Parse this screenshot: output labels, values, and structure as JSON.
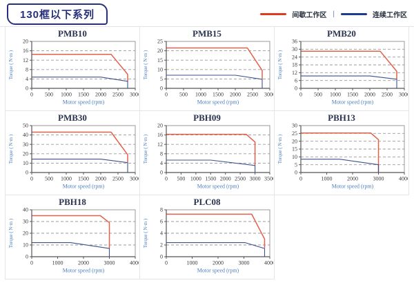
{
  "header": {
    "title": "130框以下系列"
  },
  "legend": {
    "intermittent": "间歇工作区",
    "continuous": "连续工作区",
    "separator": "|",
    "intermittent_color": "#e03a1e",
    "continuous_color": "#1e3a8c"
  },
  "colors": {
    "curve_red": "#e2604a",
    "curve_blue": "#3c508e",
    "grid_dash": "#9a9a9a",
    "plot_border": "#8f8f8f",
    "axis_line": "#555555",
    "tick_text": "#3c3c3c",
    "axis_label_blue": "#4a7ec0",
    "chart_title": "#2a3350",
    "cell_border": "#e4e4e8"
  },
  "axis_labels": {
    "x": "Motor speed (rpm)",
    "y": "Torque ( N·m )"
  },
  "chart_data": [
    {
      "type": "line",
      "title": "PMB10",
      "xlabel": "Motor speed (rpm)",
      "ylabel": "Torque ( N·m )",
      "xlim": [
        0,
        3000
      ],
      "ylim": [
        0,
        20
      ],
      "xticks": [
        0,
        500,
        1000,
        1500,
        2000,
        2500,
        3000
      ],
      "yticks": [
        0,
        4,
        8,
        12,
        16,
        20
      ],
      "series": [
        {
          "name": "间歇工作区",
          "color_key": "curve_red",
          "points": [
            [
              0,
              14.5
            ],
            [
              2300,
              14.5
            ],
            [
              2780,
              6
            ],
            [
              2780,
              3
            ]
          ]
        },
        {
          "name": "连续工作区",
          "color_key": "curve_blue",
          "points": [
            [
              0,
              4.8
            ],
            [
              2000,
              4.8
            ],
            [
              2780,
              3
            ],
            [
              2780,
              0
            ]
          ]
        }
      ]
    },
    {
      "type": "line",
      "title": "PMB15",
      "xlabel": "Motor speed (rpm)",
      "ylabel": "Torque ( N·m )",
      "xlim": [
        0,
        3000
      ],
      "ylim": [
        0,
        25
      ],
      "xticks": [
        0,
        500,
        1000,
        1500,
        2000,
        2500,
        3000
      ],
      "yticks": [
        0,
        5,
        10,
        15,
        20,
        25
      ],
      "series": [
        {
          "name": "间歇工作区",
          "color_key": "curve_red",
          "points": [
            [
              0,
              21.5
            ],
            [
              2350,
              21.5
            ],
            [
              2780,
              9.5
            ],
            [
              2780,
              5
            ]
          ]
        },
        {
          "name": "连续工作区",
          "color_key": "curve_blue",
          "points": [
            [
              0,
              7
            ],
            [
              2000,
              7
            ],
            [
              2780,
              4.8
            ],
            [
              2780,
              0
            ]
          ]
        }
      ]
    },
    {
      "type": "line",
      "title": "PMB20",
      "xlabel": "Motor speed (rpm)",
      "ylabel": "Torque ( N·m )",
      "xlim": [
        0,
        3000
      ],
      "ylim": [
        0,
        36
      ],
      "xticks": [
        0,
        500,
        1000,
        1500,
        2000,
        2500,
        3000
      ],
      "yticks": [
        0,
        6,
        12,
        18,
        24,
        30,
        36
      ],
      "series": [
        {
          "name": "间歇工作区",
          "color_key": "curve_red",
          "points": [
            [
              0,
              28.5
            ],
            [
              2300,
              28.5
            ],
            [
              2780,
              13
            ],
            [
              2780,
              7
            ]
          ]
        },
        {
          "name": "连续工作区",
          "color_key": "curve_blue",
          "points": [
            [
              0,
              9.5
            ],
            [
              2000,
              9.5
            ],
            [
              2780,
              7
            ],
            [
              2780,
              0
            ]
          ]
        }
      ]
    },
    {
      "type": "line",
      "title": "PMB30",
      "xlabel": "Motor speed (rpm)",
      "ylabel": "Torque ( N·m )",
      "xlim": [
        0,
        3000
      ],
      "ylim": [
        0,
        50
      ],
      "xticks": [
        0,
        500,
        1000,
        1500,
        2000,
        2500,
        3000
      ],
      "yticks": [
        0,
        10,
        20,
        30,
        40,
        50
      ],
      "series": [
        {
          "name": "间歇工作区",
          "color_key": "curve_red",
          "points": [
            [
              0,
              43
            ],
            [
              2300,
              43
            ],
            [
              2780,
              19
            ],
            [
              2780,
              11
            ]
          ]
        },
        {
          "name": "连续工作区",
          "color_key": "curve_blue",
          "points": [
            [
              0,
              14.3
            ],
            [
              2000,
              14.3
            ],
            [
              2780,
              10.5
            ],
            [
              2780,
              0
            ]
          ]
        }
      ]
    },
    {
      "type": "line",
      "title": "PBH09",
      "xlabel": "Motor speed (rpm)",
      "ylabel": "Torque ( N·m )",
      "xlim": [
        0,
        3500
      ],
      "ylim": [
        0,
        20
      ],
      "xticks": [
        0,
        500,
        1000,
        1500,
        2000,
        2500,
        3000,
        3500
      ],
      "yticks": [
        0,
        4,
        8,
        12,
        16,
        20
      ],
      "series": [
        {
          "name": "间歇工作区",
          "color_key": "curve_red",
          "points": [
            [
              0,
              16.3
            ],
            [
              2700,
              16.3
            ],
            [
              3000,
              13
            ],
            [
              3000,
              3
            ]
          ]
        },
        {
          "name": "连续工作区",
          "color_key": "curve_blue",
          "points": [
            [
              0,
              5.3
            ],
            [
              1500,
              5.3
            ],
            [
              3000,
              3
            ],
            [
              3000,
              0
            ]
          ]
        }
      ]
    },
    {
      "type": "line",
      "title": "PBH13",
      "xlabel": "Motor speed (rpm)",
      "ylabel": "Torque ( N·m )",
      "xlim": [
        0,
        4000
      ],
      "ylim": [
        0,
        30
      ],
      "xticks": [
        0,
        1000,
        2000,
        3000,
        4000
      ],
      "yticks": [
        0,
        5,
        10,
        15,
        20,
        25,
        30
      ],
      "series": [
        {
          "name": "间歇工作区",
          "color_key": "curve_red",
          "points": [
            [
              0,
              25.3
            ],
            [
              2700,
              25.3
            ],
            [
              3000,
              21
            ],
            [
              3000,
              0
            ]
          ]
        },
        {
          "name": "连续工作区",
          "color_key": "curve_blue",
          "points": [
            [
              0,
              8.5
            ],
            [
              1500,
              8.5
            ],
            [
              3000,
              5
            ],
            [
              3000,
              0
            ]
          ]
        }
      ]
    },
    {
      "type": "line",
      "title": "PBH18",
      "xlabel": "Motor speed (rpm)",
      "ylabel": "Torque ( N·m )",
      "xlim": [
        0,
        4000
      ],
      "ylim": [
        0,
        40
      ],
      "xticks": [
        0,
        1000,
        2000,
        3000,
        4000
      ],
      "yticks": [
        0,
        10,
        20,
        30,
        40
      ],
      "series": [
        {
          "name": "间歇工作区",
          "color_key": "curve_red",
          "points": [
            [
              0,
              35
            ],
            [
              2650,
              35
            ],
            [
              3000,
              29
            ],
            [
              3000,
              7
            ]
          ]
        },
        {
          "name": "连续工作区",
          "color_key": "curve_blue",
          "points": [
            [
              0,
              12
            ],
            [
              1500,
              12
            ],
            [
              3000,
              7
            ],
            [
              3000,
              0
            ]
          ]
        }
      ]
    },
    {
      "type": "line",
      "title": "PLC08",
      "xlabel": "Motor speed (rpm)",
      "ylabel": "Torque ( N·m )",
      "xlim": [
        0,
        4000
      ],
      "ylim": [
        0,
        8
      ],
      "xticks": [
        0,
        1000,
        2000,
        3000,
        4000
      ],
      "yticks": [
        0,
        2,
        4,
        6,
        8
      ],
      "series": [
        {
          "name": "间歇工作区",
          "color_key": "curve_red",
          "points": [
            [
              0,
              7.25
            ],
            [
              3300,
              7.25
            ],
            [
              3800,
              3
            ],
            [
              3800,
              1.5
            ]
          ]
        },
        {
          "name": "连续工作区",
          "color_key": "curve_blue",
          "points": [
            [
              0,
              2.4
            ],
            [
              3050,
              2.4
            ],
            [
              3800,
              1.4
            ],
            [
              3800,
              0
            ]
          ]
        }
      ]
    }
  ]
}
